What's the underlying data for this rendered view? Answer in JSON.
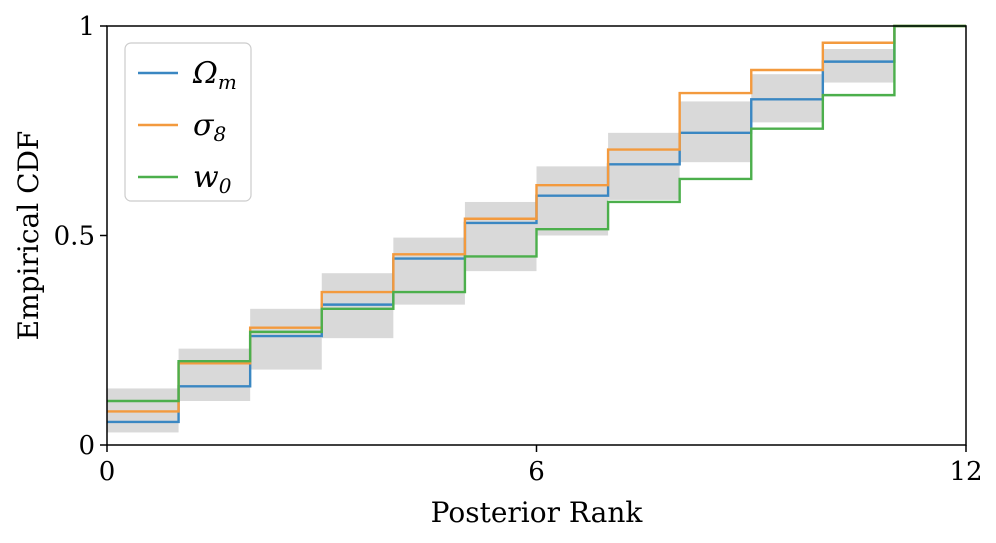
{
  "chart_data": {
    "type": "line",
    "xlabel": "Posterior Rank",
    "ylabel": "Empirical CDF",
    "xlim": [
      0,
      12
    ],
    "ylim": [
      0,
      1
    ],
    "xticks": [
      0,
      6,
      12
    ],
    "xtick_labels": [
      "0",
      "6",
      "12"
    ],
    "yticks": [
      0,
      0.5,
      1
    ],
    "ytick_labels": [
      "0",
      "0.5",
      "1"
    ],
    "grid": false,
    "legend_position": "top-left",
    "steps": [
      0,
      1,
      2,
      3,
      4,
      5,
      6,
      7,
      8,
      9,
      10,
      11
    ],
    "band": {
      "color": "#d9d9d9",
      "lower": [
        0.03,
        0.105,
        0.18,
        0.255,
        0.335,
        0.415,
        0.5,
        0.585,
        0.675,
        0.77,
        0.865,
        1.0
      ],
      "upper": [
        0.135,
        0.23,
        0.325,
        0.41,
        0.495,
        0.58,
        0.665,
        0.745,
        0.82,
        0.885,
        0.945,
        1.0
      ]
    },
    "series": [
      {
        "name": "Ω_m",
        "color": "#3a87c2",
        "values": [
          0.055,
          0.14,
          0.26,
          0.335,
          0.445,
          0.53,
          0.595,
          0.67,
          0.745,
          0.825,
          0.915,
          1.0
        ]
      },
      {
        "name": "σ_8",
        "color": "#f39a3e",
        "values": [
          0.08,
          0.195,
          0.28,
          0.365,
          0.455,
          0.54,
          0.62,
          0.705,
          0.84,
          0.895,
          0.96,
          1.0
        ]
      },
      {
        "name": "w_0",
        "color": "#4caf4c",
        "values": [
          0.105,
          0.2,
          0.27,
          0.325,
          0.365,
          0.45,
          0.515,
          0.58,
          0.635,
          0.755,
          0.835,
          1.0
        ]
      }
    ]
  }
}
